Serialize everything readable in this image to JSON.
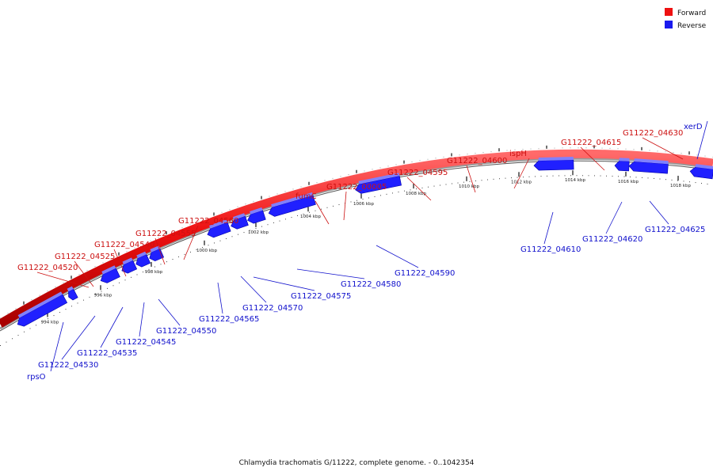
{
  "colors": {
    "forward": "#ee1111",
    "reverse": "#1a1aee",
    "label_forward": "#cc1010",
    "label_reverse": "#1010cc",
    "genes_fill": "#2020ff",
    "backbone": "#888888"
  },
  "legend": {
    "forward": "Forward",
    "reverse": "Reverse"
  },
  "caption": "Chlamydia trachomatis G/11222, complete genome. - 0..1042354",
  "scale_ticks": [
    "994 kbp",
    "996 kbp",
    "998 kbp",
    "1000 kbp",
    "1002 kbp",
    "1004 kbp",
    "1006 kbp",
    "1008 kbp",
    "1010 kbp",
    "1012 kbp",
    "1014 kbp",
    "1016 kbp",
    "1018 kbp"
  ],
  "forward_labels": [
    "G11222_04520",
    "G11222_04525",
    "G11222_04540",
    "G11222_04555",
    "G11222_04560",
    "fumC",
    "G11222_00005",
    "G11222_04595",
    "G11222_04600",
    "ispH",
    "G11222_04615",
    "G11222_04630"
  ],
  "reverse_labels": [
    "rpsO",
    "G11222_04530",
    "G11222_04535",
    "G11222_04545",
    "G11222_04550",
    "G11222_04565",
    "G11222_04570",
    "G11222_04575",
    "G11222_04580",
    "G11222_04590",
    "G11222_04610",
    "G11222_04620",
    "G11222_04625",
    "xerD"
  ]
}
